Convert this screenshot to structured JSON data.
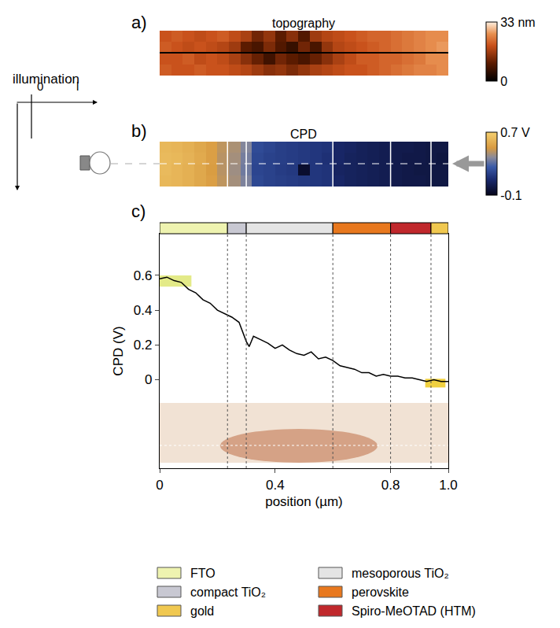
{
  "chart_data": [
    {
      "panel": "a)",
      "type": "heatmap",
      "title": "topography",
      "tick_labels": false,
      "xlim": [
        0,
        1
      ],
      "x": [
        0.02,
        0.06,
        0.1,
        0.14,
        0.18,
        0.22,
        0.26,
        0.3,
        0.34,
        0.38,
        0.42,
        0.46,
        0.5,
        0.54,
        0.58,
        0.62,
        0.66,
        0.7,
        0.74,
        0.78,
        0.82,
        0.86,
        0.9,
        0.94,
        0.98
      ],
      "z": [
        [
          21,
          20,
          20,
          21,
          20,
          20,
          19,
          18,
          16,
          14,
          15,
          13,
          15,
          17,
          18,
          19,
          20,
          20,
          21,
          22,
          23,
          24,
          25,
          25,
          26
        ],
        [
          20,
          20,
          21,
          19,
          20,
          19,
          17,
          14,
          11,
          7,
          12,
          10,
          8,
          11,
          14,
          17,
          19,
          21,
          21,
          22,
          22,
          23,
          24,
          26,
          26
        ],
        [
          21,
          20,
          19,
          20,
          19,
          18,
          16,
          10,
          8,
          13,
          9,
          6,
          12,
          8,
          15,
          18,
          19,
          20,
          21,
          22,
          23,
          24,
          25,
          26,
          27
        ],
        [
          20,
          21,
          20,
          19,
          20,
          21,
          19,
          17,
          12,
          15,
          10,
          14,
          9,
          16,
          18,
          19,
          20,
          21,
          22,
          22,
          23,
          24,
          25,
          26,
          26
        ]
      ],
      "zlim": [
        0,
        33
      ],
      "zticks": [
        0,
        {
          "value": 33,
          "label": "33 nm"
        }
      ]
    },
    {
      "panel": "b)",
      "type": "heatmap",
      "title": "CPD",
      "tick_labels": false,
      "xlim": [
        0,
        1
      ],
      "x": [
        0.02,
        0.06,
        0.1,
        0.14,
        0.18,
        0.22,
        0.26,
        0.3,
        0.34,
        0.38,
        0.42,
        0.46,
        0.5,
        0.54,
        0.58,
        0.62,
        0.66,
        0.7,
        0.74,
        0.78,
        0.82,
        0.86,
        0.9,
        0.94,
        0.98
      ],
      "z": [
        [
          0.61,
          0.6,
          0.58,
          0.55,
          0.52,
          0.46,
          0.42,
          0.36,
          0.2,
          0.18,
          0.17,
          0.16,
          0.15,
          0.14,
          0.13,
          0.08,
          0.06,
          0.05,
          0.04,
          0.03,
          0.02,
          0.01,
          0.01,
          0.0,
          0.0
        ],
        [
          0.62,
          0.6,
          0.58,
          0.55,
          0.51,
          0.45,
          0.41,
          0.34,
          0.19,
          0.18,
          0.16,
          0.15,
          -0.05,
          0.14,
          0.13,
          0.07,
          0.06,
          0.05,
          0.04,
          0.03,
          0.02,
          0.01,
          0.0,
          0.0,
          0.0
        ],
        [
          0.62,
          0.61,
          0.59,
          0.56,
          0.52,
          0.45,
          0.42,
          0.35,
          0.2,
          0.18,
          0.17,
          0.16,
          0.15,
          0.14,
          0.12,
          0.08,
          0.06,
          0.05,
          0.04,
          0.03,
          0.02,
          0.01,
          0.01,
          0.0,
          -0.01
        ],
        [
          0.61,
          0.6,
          0.58,
          0.55,
          0.52,
          0.46,
          0.43,
          0.37,
          0.21,
          0.19,
          0.17,
          0.16,
          0.15,
          0.14,
          0.13,
          0.08,
          0.07,
          0.05,
          0.04,
          0.03,
          0.02,
          0.02,
          0.01,
          0.0,
          0.0
        ]
      ],
      "zlim": [
        -0.1,
        0.7
      ],
      "zticks": [
        -0.1,
        {
          "value": 0.7,
          "label": "0.7 V"
        }
      ]
    },
    {
      "panel": "c)",
      "type": "line",
      "color": "#000000",
      "grid": false,
      "x_label": "position (µm)",
      "y_label": "CPD (V)",
      "x": [
        0,
        0.025,
        0.05,
        0.075,
        0.1,
        0.125,
        0.15,
        0.175,
        0.2,
        0.225,
        0.25,
        0.275,
        0.3,
        0.31,
        0.325,
        0.35,
        0.375,
        0.4,
        0.425,
        0.45,
        0.475,
        0.5,
        0.525,
        0.55,
        0.575,
        0.6,
        0.625,
        0.65,
        0.675,
        0.7,
        0.725,
        0.75,
        0.775,
        0.8,
        0.825,
        0.85,
        0.875,
        0.9,
        0.925,
        0.95,
        0.975,
        1.0
      ],
      "values": [
        0.58,
        0.59,
        0.57,
        0.56,
        0.52,
        0.5,
        0.46,
        0.44,
        0.4,
        0.38,
        0.36,
        0.33,
        0.22,
        0.19,
        0.25,
        0.23,
        0.21,
        0.18,
        0.2,
        0.17,
        0.15,
        0.14,
        0.16,
        0.12,
        0.13,
        0.11,
        0.08,
        0.07,
        0.06,
        0.04,
        0.04,
        0.02,
        0.03,
        0.02,
        0.02,
        0.01,
        0.01,
        0.0,
        -0.01,
        0.0,
        -0.01,
        -0.01
      ],
      "xlim": [
        0,
        1
      ],
      "ylim": [
        -0.51,
        0.84
      ],
      "xticks": [
        0,
        0.4,
        0.8,
        {
          "value": 1,
          "label": "1.0"
        }
      ],
      "yticks": [
        0,
        0.2,
        0.4,
        0.6
      ],
      "layers": [
        {
          "name": "FTO",
          "color": "#eef3b0",
          "start": 0,
          "end": 0.235
        },
        {
          "name": "compact TiO₂",
          "color": "#c8c8d2",
          "start": 0.235,
          "end": 0.3
        },
        {
          "name": "mesoporous TiO₂",
          "color": "#e4e4e4",
          "start": 0.3,
          "end": 0.6
        },
        {
          "name": "perovskite",
          "color": "#e8781e",
          "start": 0.6,
          "end": 0.8
        },
        {
          "name": "Spiro-MeOTAD (HTM)",
          "color": "#c0282c",
          "start": 0.8,
          "end": 0.94
        },
        {
          "name": "gold",
          "color": "#f0c850",
          "start": 0.94,
          "end": 1.0
        }
      ],
      "highlights": [
        {
          "x": [
            0,
            0.11
          ],
          "y": [
            0.535,
            0.6
          ],
          "color": "#e3ea88"
        },
        {
          "x": [
            0.92,
            0.99
          ],
          "y": [
            -0.045,
            0.005
          ],
          "color": "#f0d040"
        }
      ]
    }
  ],
  "schematic": {
    "label": "illumination",
    "axis_labels": [
      "0",
      "l"
    ]
  }
}
